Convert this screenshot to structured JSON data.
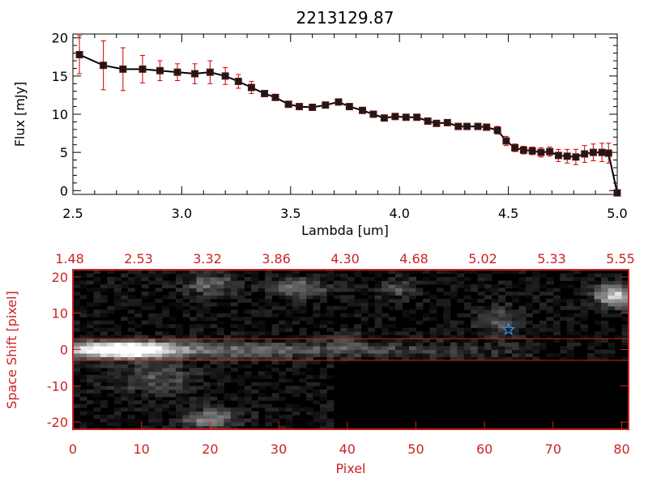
{
  "chart_data": [
    {
      "type": "line",
      "title": "2213129.87",
      "xlabel": "Lambda [um]",
      "ylabel": "Flux [mJy]",
      "xlim": [
        2.5,
        5.0
      ],
      "ylim": [
        -0.5,
        20.5
      ],
      "x_ticks": [
        "2.5",
        "3.0",
        "3.5",
        "4.0",
        "4.5",
        "5.0"
      ],
      "y_ticks": [
        "0",
        "5",
        "10",
        "15",
        "20"
      ],
      "series": [
        {
          "x": [
            2.53,
            2.64,
            2.73,
            2.82,
            2.9,
            2.98,
            3.06,
            3.13,
            3.2,
            3.26,
            3.32,
            3.38,
            3.43,
            3.49,
            3.54,
            3.6,
            3.66,
            3.72,
            3.77,
            3.83,
            3.88,
            3.93,
            3.98,
            4.03,
            4.08,
            4.13,
            4.17,
            4.22,
            4.27,
            4.31,
            4.36,
            4.4,
            4.45,
            4.49,
            4.53,
            4.57,
            4.61,
            4.65,
            4.69,
            4.73,
            4.77,
            4.81,
            4.85,
            4.89,
            4.93,
            4.96,
            5.0
          ],
          "y": [
            17.8,
            16.4,
            15.9,
            15.9,
            15.7,
            15.5,
            15.3,
            15.5,
            15.0,
            14.3,
            13.5,
            12.7,
            12.2,
            11.3,
            11.0,
            10.9,
            11.2,
            11.6,
            11.0,
            10.5,
            10.0,
            9.5,
            9.7,
            9.6,
            9.6,
            9.1,
            8.8,
            8.9,
            8.4,
            8.4,
            8.4,
            8.3,
            7.9,
            6.5,
            5.6,
            5.3,
            5.2,
            5.0,
            5.1,
            4.6,
            4.5,
            4.4,
            4.8,
            5.0,
            5.0,
            4.9,
            -0.3
          ],
          "err": [
            2.5,
            3.2,
            2.8,
            1.8,
            1.3,
            1.1,
            1.3,
            1.5,
            1.1,
            0.9,
            0.8,
            0.4,
            0.3,
            0.3,
            0.3,
            0.3,
            0.3,
            0.3,
            0.3,
            0.3,
            0.3,
            0.3,
            0.3,
            0.3,
            0.3,
            0.3,
            0.3,
            0.3,
            0.3,
            0.3,
            0.3,
            0.3,
            0.5,
            0.6,
            0.5,
            0.5,
            0.5,
            0.6,
            0.6,
            0.8,
            0.9,
            1.0,
            1.1,
            1.1,
            1.2,
            1.3,
            0.4
          ]
        }
      ],
      "colors": {
        "line": "#000000",
        "marker": "#000000",
        "error_bar": "#cc0000"
      }
    },
    {
      "type": "heatmap",
      "xlabel": "Pixel",
      "ylabel": "Space Shift [pixel]",
      "xlim": [
        0,
        81
      ],
      "ylim": [
        -22,
        22
      ],
      "x_ticks": [
        "0",
        "10",
        "20",
        "30",
        "40",
        "50",
        "60",
        "70",
        "80"
      ],
      "y_ticks": [
        "-20",
        "-10",
        "0",
        "10",
        "20"
      ],
      "top_ticks": [
        "1.48",
        "2.53",
        "3.32",
        "3.86",
        "4.30",
        "4.68",
        "5.02",
        "5.33",
        "5.55"
      ],
      "colormap": "grayscale",
      "aperture_lines_y": [
        3,
        -3
      ],
      "marker": {
        "shape": "star",
        "x": 63.5,
        "y": 5.5,
        "color": "#3399ff"
      },
      "colors": {
        "frame": "#cc2222",
        "aperture": "#cc2222"
      }
    }
  ]
}
